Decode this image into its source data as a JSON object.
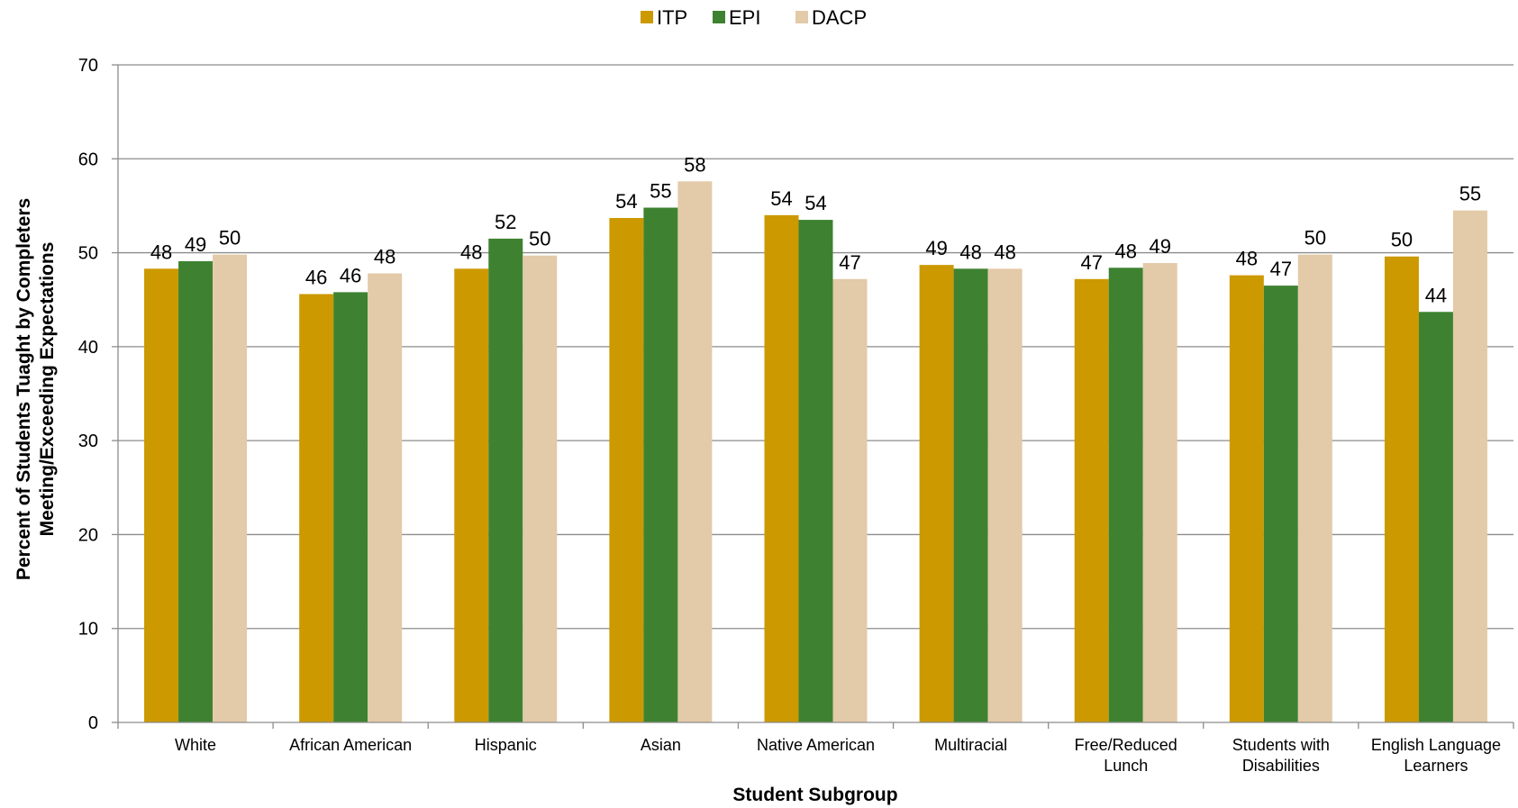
{
  "chart_data": {
    "type": "bar",
    "categories": [
      [
        "White"
      ],
      [
        "African American"
      ],
      [
        "Hispanic"
      ],
      [
        "Asian"
      ],
      [
        "Native American"
      ],
      [
        "Multiracial"
      ],
      [
        "Free/Reduced",
        "Lunch"
      ],
      [
        "Students with",
        "Disabilities"
      ],
      [
        "English Language",
        "Learners"
      ]
    ],
    "series": [
      {
        "name": "ITP",
        "color": "#CC9900",
        "values": [
          48.3,
          45.6,
          48.3,
          53.7,
          54.0,
          48.7,
          47.2,
          47.6,
          49.6
        ],
        "labels": [
          "48",
          "46",
          "48",
          "54",
          "54",
          "49",
          "47",
          "48",
          "50"
        ]
      },
      {
        "name": "EPI",
        "color": "#3E8231",
        "values": [
          49.1,
          45.8,
          51.5,
          54.8,
          53.5,
          48.3,
          48.4,
          46.5,
          43.7
        ],
        "labels": [
          "49",
          "46",
          "52",
          "55",
          "54",
          "48",
          "48",
          "47",
          "44"
        ]
      },
      {
        "name": "DACP",
        "color": "#E3CAA8",
        "values": [
          49.8,
          47.8,
          49.7,
          57.6,
          47.2,
          48.3,
          48.9,
          49.8,
          54.5
        ],
        "labels": [
          "50",
          "48",
          "50",
          "58",
          "47",
          "48",
          "49",
          "50",
          "55"
        ]
      }
    ],
    "ylim": [
      0,
      70
    ],
    "yticks": [
      0,
      10,
      20,
      30,
      40,
      50,
      60,
      70
    ],
    "xlabel": "Student Subgroup",
    "ylabel": [
      "Percent of Students Tuaght by Completers",
      "Meeting/Exceeding Expectations"
    ],
    "legend_position": "top-center",
    "grid": true
  }
}
